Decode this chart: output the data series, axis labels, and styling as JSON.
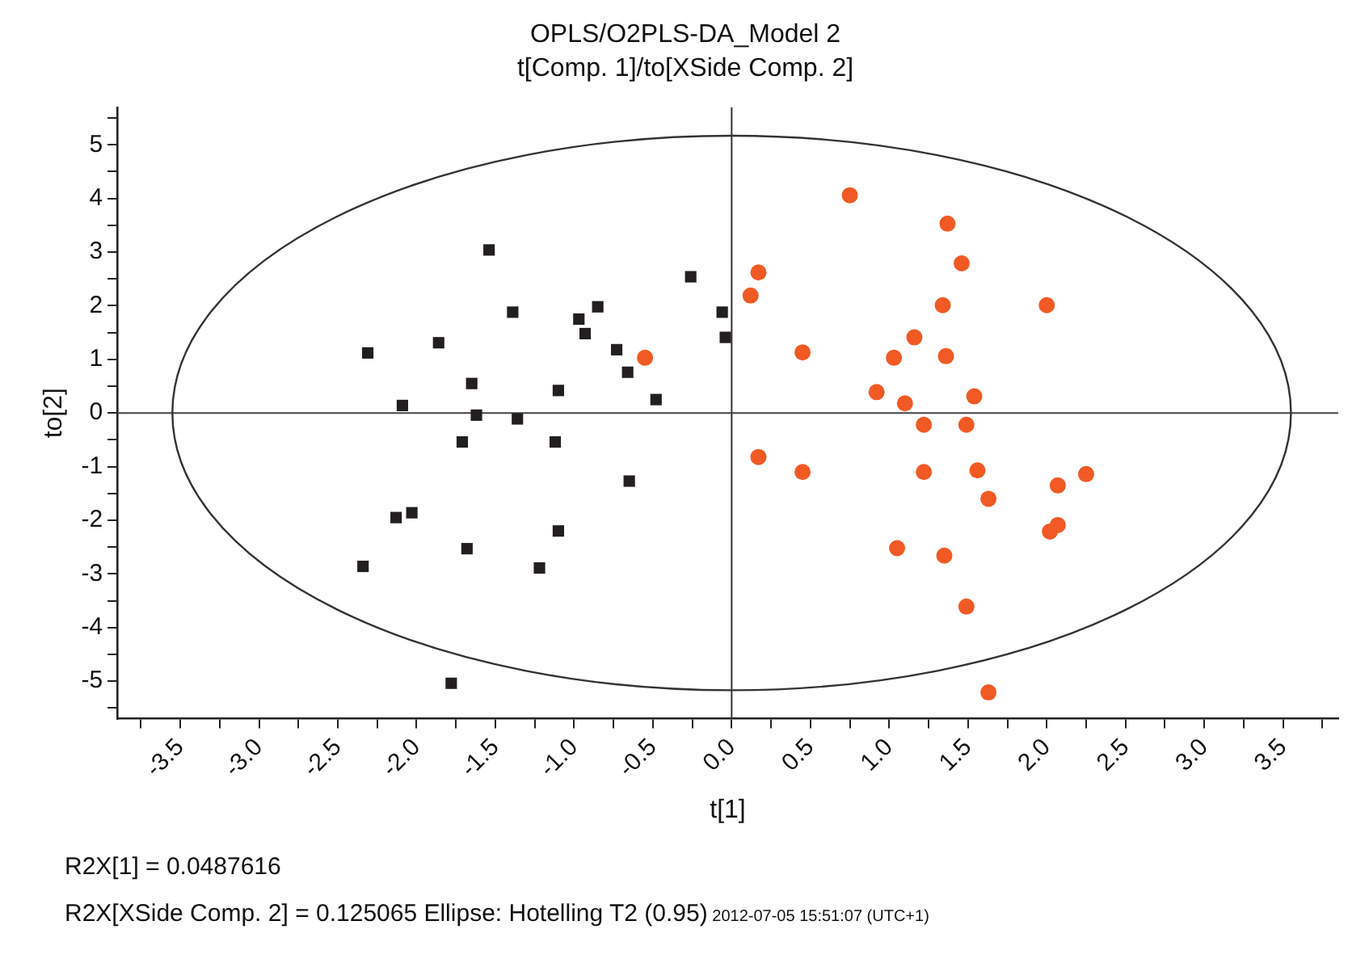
{
  "chart_data": {
    "type": "scatter",
    "title": "OPLS/O2PLS-DA_Model 2",
    "subtitle": "t[Comp. 1]/to[XSide Comp. 2]",
    "xlabel": "t[1]",
    "ylabel": "to[2]",
    "annotations": [
      "R2X[1] = 0.0487616",
      "R2X[XSide Comp. 2] = 0.125065 Ellipse: Hotelling T2 (0.95)",
      "2012-07-05 15:51:07 (UTC+1)"
    ],
    "xlim": [
      -3.9,
      3.85
    ],
    "ylim": [
      -5.7,
      5.7
    ],
    "xticks": [
      {
        "value": -3.75,
        "label": null
      },
      {
        "value": -3.5,
        "label": "-3.5"
      },
      {
        "value": -3.25,
        "label": null
      },
      {
        "value": -3,
        "label": "-3.0"
      },
      {
        "value": -2.75,
        "label": null
      },
      {
        "value": -2.5,
        "label": "-2.5"
      },
      {
        "value": -2.25,
        "label": null
      },
      {
        "value": -2,
        "label": "-2.0"
      },
      {
        "value": -1.75,
        "label": null
      },
      {
        "value": -1.5,
        "label": "-1.5"
      },
      {
        "value": -1.25,
        "label": null
      },
      {
        "value": -1,
        "label": "-1.0"
      },
      {
        "value": -0.75,
        "label": null
      },
      {
        "value": -0.5,
        "label": "-0.5"
      },
      {
        "value": -0.25,
        "label": null
      },
      {
        "value": 0,
        "label": "0.0"
      },
      {
        "value": 0.25,
        "label": null
      },
      {
        "value": 0.5,
        "label": "0.5"
      },
      {
        "value": 0.75,
        "label": null
      },
      {
        "value": 1,
        "label": "1.0"
      },
      {
        "value": 1.25,
        "label": null
      },
      {
        "value": 1.5,
        "label": "1.5"
      },
      {
        "value": 1.75,
        "label": null
      },
      {
        "value": 2,
        "label": "2.0"
      },
      {
        "value": 2.25,
        "label": null
      },
      {
        "value": 2.5,
        "label": "2.5"
      },
      {
        "value": 2.75,
        "label": null
      },
      {
        "value": 3,
        "label": "3.0"
      },
      {
        "value": 3.25,
        "label": null
      },
      {
        "value": 3.5,
        "label": "3.5"
      },
      {
        "value": 3.75,
        "label": null
      }
    ],
    "yticks": [
      {
        "value": -5.5,
        "label": null
      },
      -5,
      {
        "value": -4.5,
        "label": null
      },
      -4,
      {
        "value": -3.5,
        "label": null
      },
      -3,
      {
        "value": -2.5,
        "label": null
      },
      -2,
      {
        "value": -1.5,
        "label": null
      },
      -1,
      {
        "value": -0.5,
        "label": null
      },
      0,
      {
        "value": 0.5,
        "label": null
      },
      1,
      {
        "value": 1.5,
        "label": null
      },
      2,
      {
        "value": 2.5,
        "label": null
      },
      3,
      {
        "value": 3.5,
        "label": null
      },
      4,
      {
        "value": 4.5,
        "label": null
      },
      5,
      {
        "value": 5.5,
        "label": null
      }
    ],
    "grid": false,
    "legend": false,
    "ref_lines": [
      {
        "axis": "x",
        "value": 0,
        "color": "#333333"
      },
      {
        "axis": "y",
        "value": 0,
        "color": "#444444"
      }
    ],
    "series": [
      {
        "type": "scatter",
        "marker": "square",
        "color": "#231f20",
        "x": [
          -1.54,
          -0.26,
          -1.39,
          -0.85,
          -0.97,
          -0.93,
          -0.06,
          -0.04,
          -2.31,
          -1.86,
          -0.73,
          -0.66,
          -0.48,
          -1.65,
          -1.1,
          -2.09,
          -1.62,
          -1.36,
          -1.71,
          -1.12,
          -0.65,
          -2.03,
          -2.13,
          -1.1,
          -1.68,
          -2.34,
          -1.22,
          -1.78
        ],
        "values": [
          3.04,
          2.54,
          1.88,
          1.98,
          1.75,
          1.48,
          1.88,
          1.41,
          1.12,
          1.31,
          1.18,
          0.76,
          0.25,
          0.55,
          0.42,
          0.14,
          -0.04,
          -0.11,
          -0.54,
          -0.54,
          -1.27,
          -1.86,
          -1.95,
          -2.2,
          -2.53,
          -2.86,
          -2.89,
          -5.04
        ]
      },
      {
        "type": "scatter",
        "marker": "circle",
        "color": "#f15a24",
        "x": [
          -0.55,
          0.75,
          1.37,
          1.46,
          0.17,
          0.12,
          1.34,
          2.0,
          1.16,
          0.45,
          1.03,
          1.36,
          0.92,
          1.1,
          1.54,
          1.22,
          1.49,
          0.17,
          0.45,
          1.22,
          1.56,
          2.25,
          2.07,
          1.63,
          2.07,
          2.02,
          1.05,
          1.35,
          1.49,
          1.63
        ],
        "values": [
          1.03,
          4.06,
          3.53,
          2.79,
          2.62,
          2.19,
          2.01,
          2.01,
          1.41,
          1.13,
          1.03,
          1.06,
          0.39,
          0.18,
          0.31,
          -0.22,
          -0.22,
          -0.82,
          -1.1,
          -1.1,
          -1.07,
          -1.14,
          -1.35,
          -1.6,
          -2.09,
          -2.21,
          -2.52,
          -2.66,
          -3.61,
          -5.21
        ]
      }
    ]
  }
}
